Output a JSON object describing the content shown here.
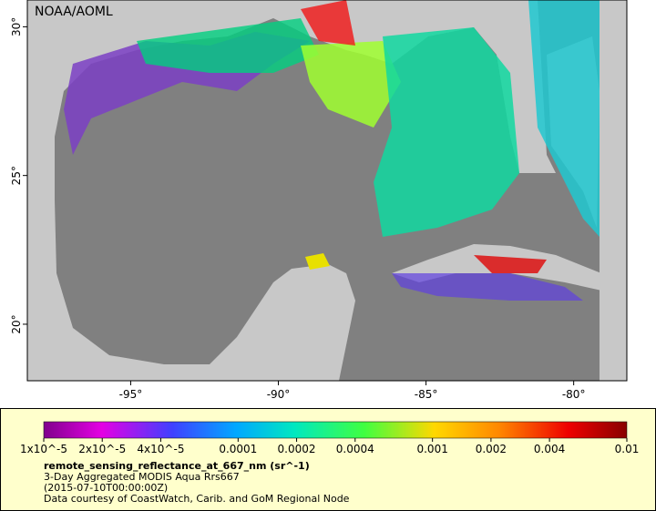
{
  "map": {
    "watermark": "NOAA/AOML",
    "xlim": [
      -98.5,
      -78.2
    ],
    "ylim": [
      18.1,
      30.9
    ],
    "xticks": [
      {
        "value": -95,
        "label": "-95°"
      },
      {
        "value": -90,
        "label": "-90°"
      },
      {
        "value": -85,
        "label": "-85°"
      },
      {
        "value": -80,
        "label": "-80°"
      }
    ],
    "yticks": [
      {
        "value": 20,
        "label": "20°"
      },
      {
        "value": 25,
        "label": "25°"
      },
      {
        "value": 30,
        "label": "30°"
      }
    ]
  },
  "colorbar": {
    "scale": "log",
    "lim": [
      1e-05,
      0.01
    ],
    "ticks": [
      {
        "value": 1e-05,
        "label": "1x10^-5"
      },
      {
        "value": 2e-05,
        "label": "2x10^-5"
      },
      {
        "value": 4e-05,
        "label": "4x10^-5"
      },
      {
        "value": 0.0001,
        "label": "0.0001"
      },
      {
        "value": 0.0002,
        "label": "0.0002"
      },
      {
        "value": 0.0004,
        "label": "0.0004"
      },
      {
        "value": 0.001,
        "label": "0.001"
      },
      {
        "value": 0.002,
        "label": "0.002"
      },
      {
        "value": 0.004,
        "label": "0.004"
      },
      {
        "value": 0.01,
        "label": "0.01"
      }
    ]
  },
  "legend": {
    "variable": "remote_sensing_reflectance_at_667_nm (sr^-1)",
    "dataset": "3-Day Aggregated MODIS Aqua Rrs667",
    "time": "(2015-07-10T00:00:00Z)",
    "credit": "Data courtesy of CoastWatch, Carib. and GoM Regional Node"
  }
}
